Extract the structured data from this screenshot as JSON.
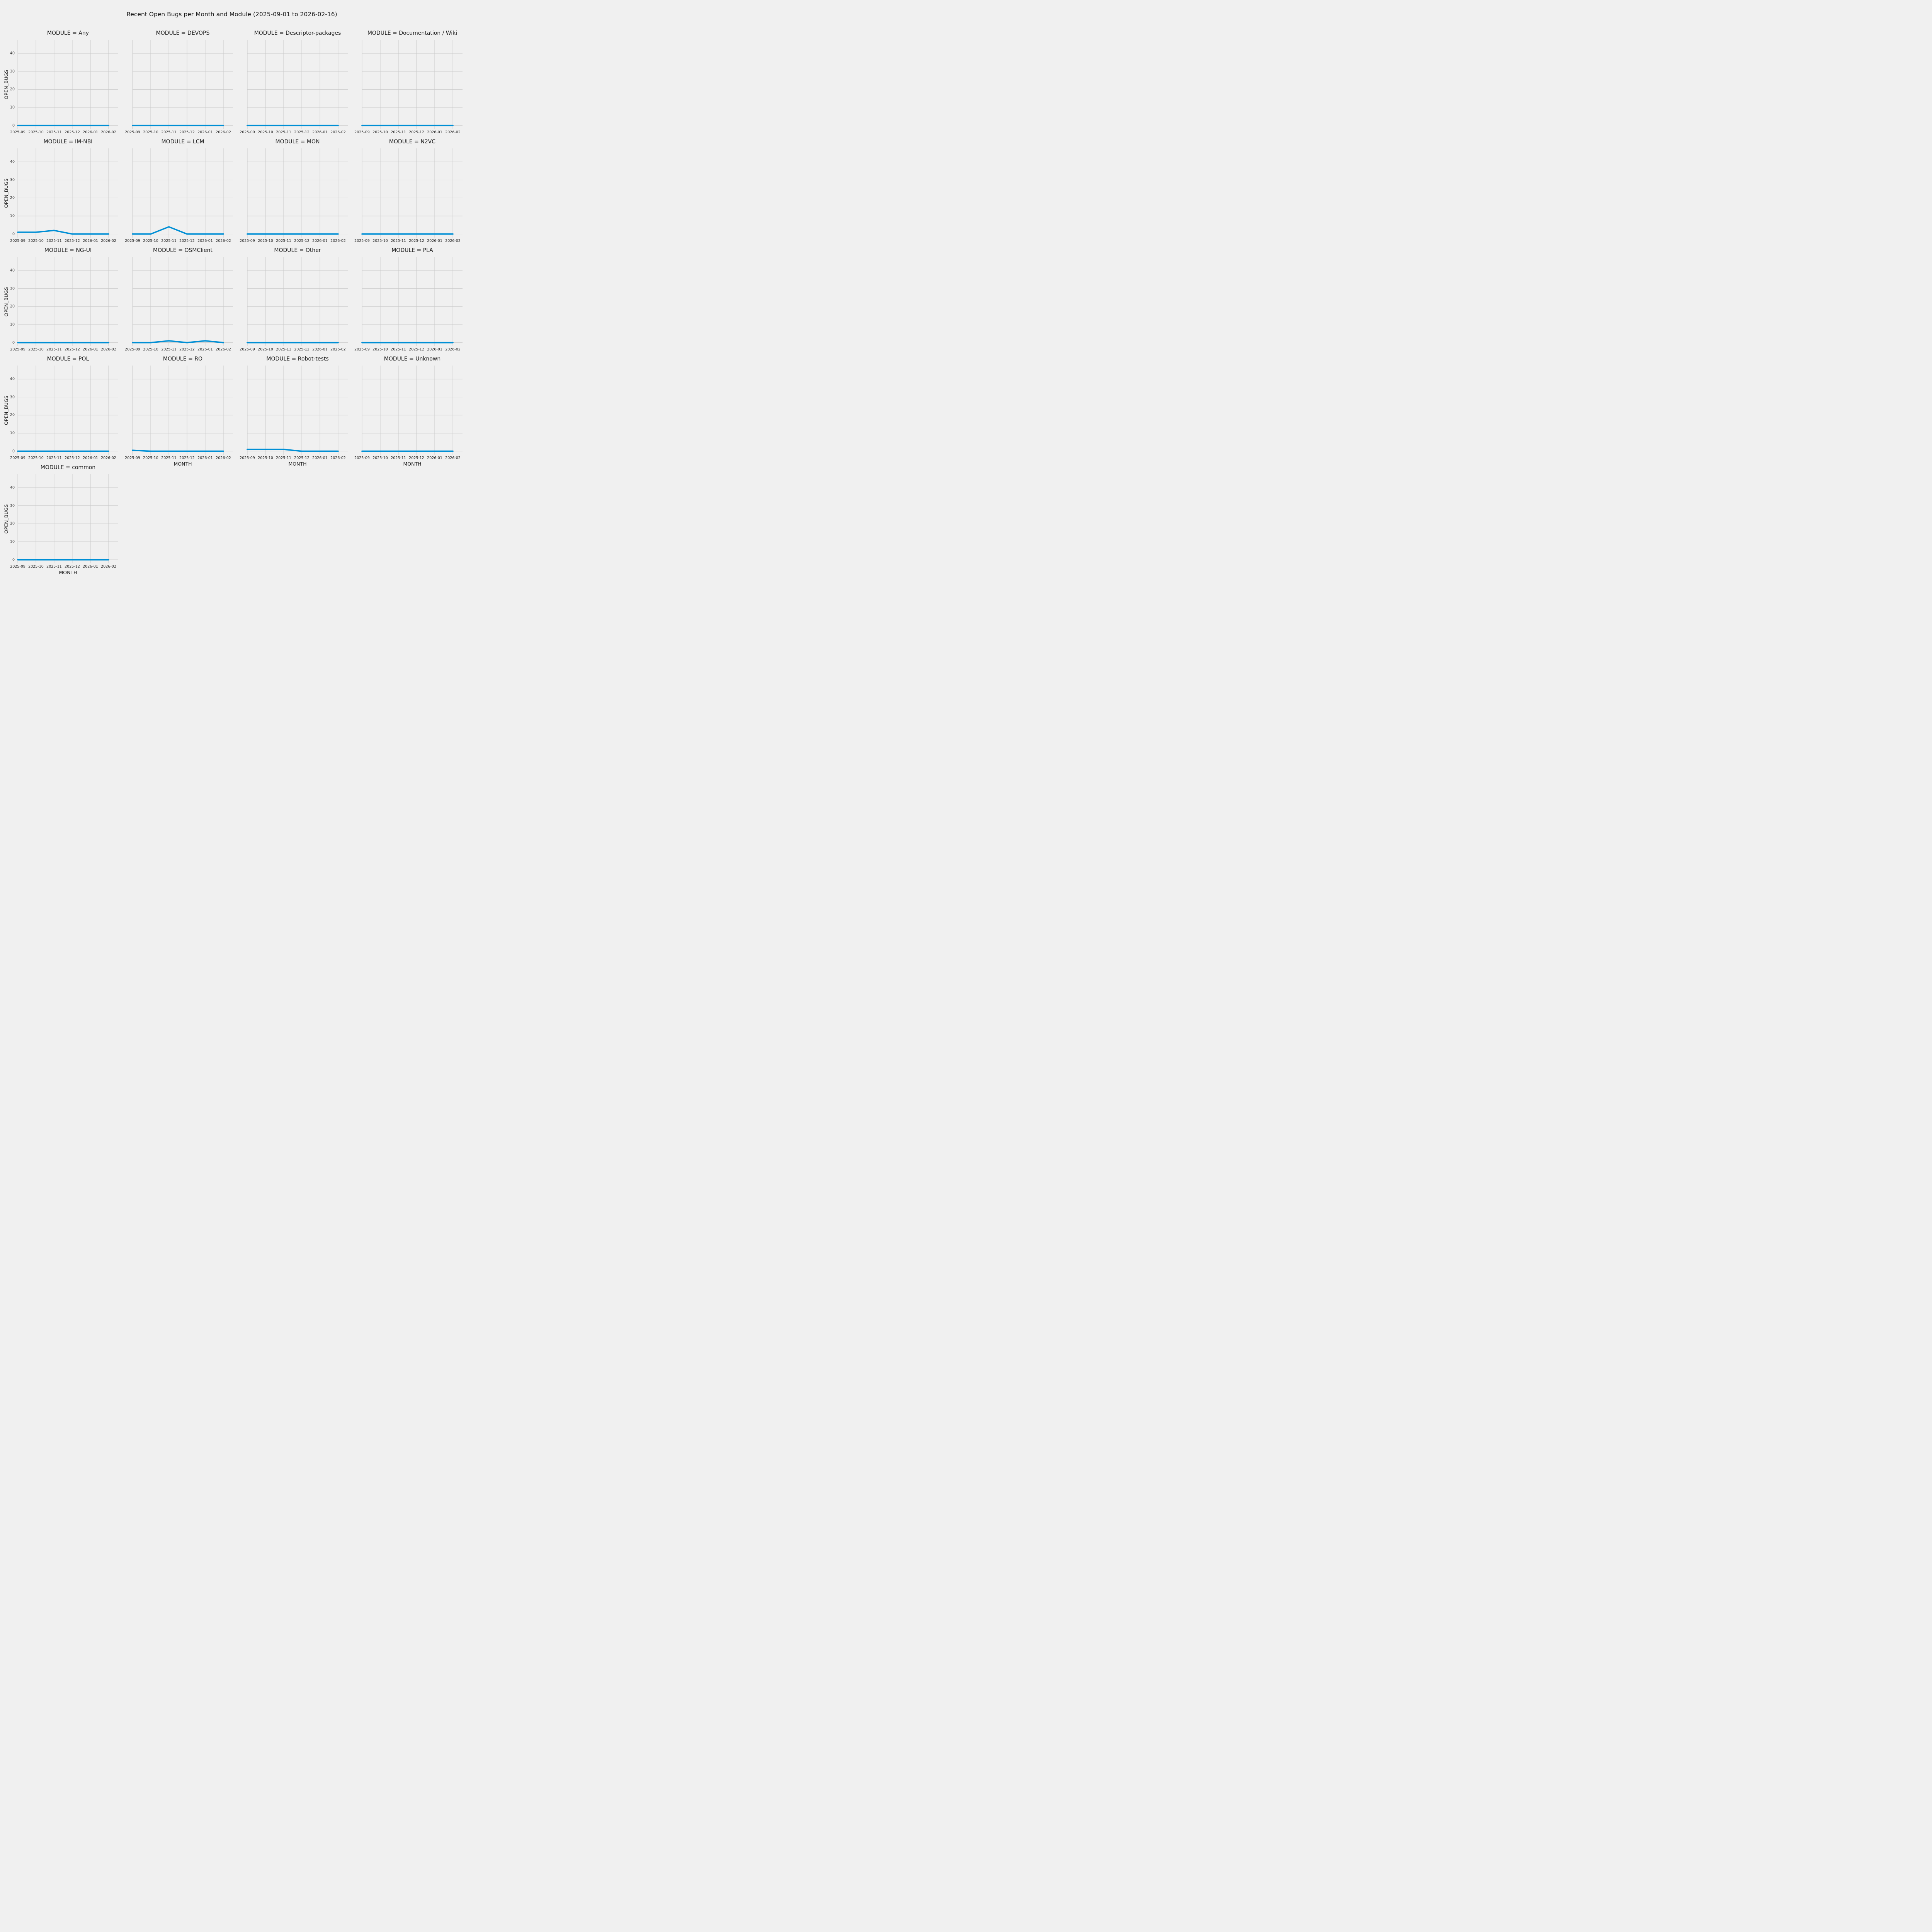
{
  "figure_title": "Recent Open Bugs per Month and Module (2025-09-01 to 2026-02-16)",
  "colors": {
    "background": "#f0f0f0",
    "grid": "#cbcbcb",
    "line": "#008fd5",
    "text": "#1a1a1a"
  },
  "chart_data": {
    "type": "line",
    "facet_variable": "MODULE",
    "title": "Recent Open Bugs per Month and Module (2025-09-01 to 2026-02-16)",
    "xlabel": "MONTH",
    "ylabel": "OPEN_BUGS",
    "x": [
      "2025-09",
      "2025-10",
      "2025-11",
      "2025-12",
      "2026-01",
      "2026-02"
    ],
    "yticks": [
      0,
      10,
      20,
      30,
      40
    ],
    "ylim": [
      -2,
      47.5
    ],
    "xlim_months": [
      0,
      5.5
    ],
    "grid": true,
    "legend": "none",
    "line_color": "#008fd5",
    "series": [
      {
        "name": "Any",
        "label": "MODULE = Any",
        "values": [
          0,
          0,
          0,
          0,
          0,
          0
        ]
      },
      {
        "name": "DEVOPS",
        "label": "MODULE = DEVOPS",
        "values": [
          0,
          0,
          0,
          0,
          0,
          0
        ]
      },
      {
        "name": "Descriptor-packages",
        "label": "MODULE = Descriptor-packages",
        "values": [
          0,
          0,
          0,
          0,
          0,
          0
        ]
      },
      {
        "name": "Documentation / Wiki",
        "label": "MODULE = Documentation / Wiki",
        "values": [
          0,
          0,
          0,
          0,
          0,
          0
        ]
      },
      {
        "name": "IM-NBI",
        "label": "MODULE = IM-NBI",
        "values": [
          1,
          1,
          2,
          0,
          0,
          0
        ]
      },
      {
        "name": "LCM",
        "label": "MODULE = LCM",
        "values": [
          0,
          0,
          4,
          0,
          0,
          0
        ]
      },
      {
        "name": "MON",
        "label": "MODULE = MON",
        "values": [
          0,
          0,
          0,
          0,
          0,
          0
        ]
      },
      {
        "name": "N2VC",
        "label": "MODULE = N2VC",
        "values": [
          0,
          0,
          0,
          0,
          0,
          0
        ]
      },
      {
        "name": "NG-UI",
        "label": "MODULE = NG-UI",
        "values": [
          0,
          0,
          0,
          0,
          0,
          0
        ]
      },
      {
        "name": "OSMClient",
        "label": "MODULE = OSMClient",
        "values": [
          0,
          0,
          1,
          0,
          1,
          0
        ]
      },
      {
        "name": "Other",
        "label": "MODULE = Other",
        "values": [
          0,
          0,
          0,
          0,
          0,
          0
        ]
      },
      {
        "name": "PLA",
        "label": "MODULE = PLA",
        "values": [
          0,
          0,
          0,
          0,
          0,
          0
        ]
      },
      {
        "name": "POL",
        "label": "MODULE = POL",
        "values": [
          0,
          0,
          0,
          0,
          0,
          0
        ]
      },
      {
        "name": "RO",
        "label": "MODULE = RO",
        "values": [
          0.5,
          0,
          0,
          0,
          0,
          0
        ]
      },
      {
        "name": "Robot-tests",
        "label": "MODULE = Robot-tests",
        "values": [
          1,
          1,
          1,
          0,
          0,
          0
        ]
      },
      {
        "name": "Unknown",
        "label": "MODULE = Unknown",
        "values": [
          0,
          0,
          0,
          0,
          0,
          0
        ]
      },
      {
        "name": "common",
        "label": "MODULE = common",
        "values": [
          0,
          0,
          0,
          0,
          0,
          0
        ]
      }
    ]
  }
}
